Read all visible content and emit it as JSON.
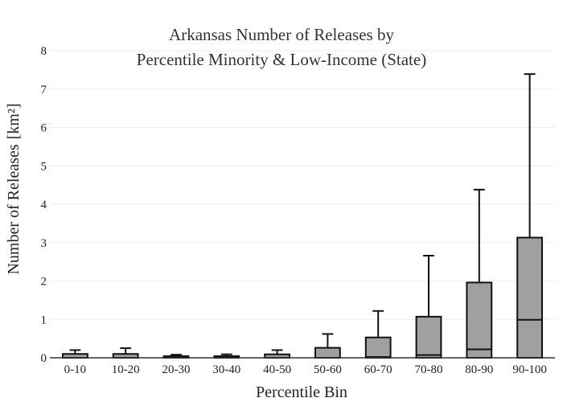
{
  "chart_data": {
    "type": "box",
    "title_lines": [
      "Arkansas Number of Releases by",
      "Percentile Minority & Low-Income (State)"
    ],
    "xlabel": "Percentile Bin",
    "ylabel": "Number of Releases",
    "ylabel_unit": "[km²]",
    "ylim": [
      0,
      8
    ],
    "yticks": [
      0,
      1,
      2,
      3,
      4,
      5,
      6,
      7,
      8
    ],
    "grid": true,
    "box_color": "#a0a0a0",
    "line_color": "#111111",
    "categories": [
      "0-10",
      "10-20",
      "20-30",
      "30-40",
      "40-50",
      "50-60",
      "60-70",
      "70-80",
      "80-90",
      "90-100"
    ],
    "boxes": [
      {
        "whisker_low": 0,
        "q1": 0,
        "median": 0,
        "q3": 0.1,
        "whisker_high": 0.2
      },
      {
        "whisker_low": 0,
        "q1": 0,
        "median": 0,
        "q3": 0.1,
        "whisker_high": 0.25
      },
      {
        "whisker_low": 0,
        "q1": 0,
        "median": 0,
        "q3": 0.03,
        "whisker_high": 0.08
      },
      {
        "whisker_low": 0,
        "q1": 0,
        "median": 0,
        "q3": 0.04,
        "whisker_high": 0.09
      },
      {
        "whisker_low": 0,
        "q1": 0,
        "median": 0,
        "q3": 0.09,
        "whisker_high": 0.2
      },
      {
        "whisker_low": 0,
        "q1": 0,
        "median": 0,
        "q3": 0.26,
        "whisker_high": 0.62
      },
      {
        "whisker_low": 0,
        "q1": 0,
        "median": 0.02,
        "q3": 0.53,
        "whisker_high": 1.22
      },
      {
        "whisker_low": 0,
        "q1": 0,
        "median": 0.07,
        "q3": 1.07,
        "whisker_high": 2.66
      },
      {
        "whisker_low": 0,
        "q1": 0,
        "median": 0.22,
        "q3": 1.96,
        "whisker_high": 4.38
      },
      {
        "whisker_low": 0,
        "q1": 0,
        "median": 0.99,
        "q3": 3.13,
        "whisker_high": 7.39
      }
    ]
  }
}
